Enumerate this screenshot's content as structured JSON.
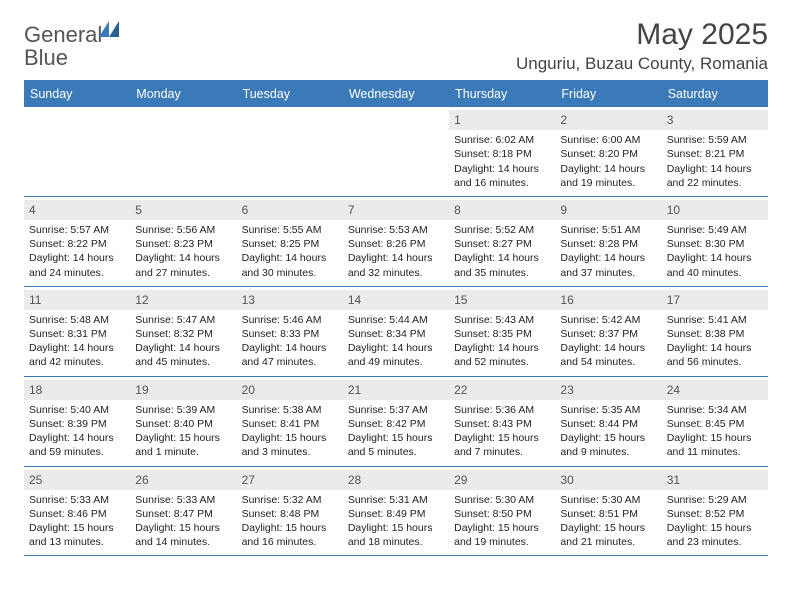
{
  "brand": {
    "word1": "General",
    "word2": "Blue"
  },
  "title": "May 2025",
  "location": "Unguriu, Buzau County, Romania",
  "colors": {
    "accent": "#3a7ab8",
    "text": "#444444",
    "daybg": "#ebebeb"
  },
  "weekdays": [
    "Sunday",
    "Monday",
    "Tuesday",
    "Wednesday",
    "Thursday",
    "Friday",
    "Saturday"
  ],
  "weeks": [
    [
      {
        "n": "",
        "sr": "",
        "ss": "",
        "dl": ""
      },
      {
        "n": "",
        "sr": "",
        "ss": "",
        "dl": ""
      },
      {
        "n": "",
        "sr": "",
        "ss": "",
        "dl": ""
      },
      {
        "n": "",
        "sr": "",
        "ss": "",
        "dl": ""
      },
      {
        "n": "1",
        "sr": "Sunrise: 6:02 AM",
        "ss": "Sunset: 8:18 PM",
        "dl": "Daylight: 14 hours and 16 minutes."
      },
      {
        "n": "2",
        "sr": "Sunrise: 6:00 AM",
        "ss": "Sunset: 8:20 PM",
        "dl": "Daylight: 14 hours and 19 minutes."
      },
      {
        "n": "3",
        "sr": "Sunrise: 5:59 AM",
        "ss": "Sunset: 8:21 PM",
        "dl": "Daylight: 14 hours and 22 minutes."
      }
    ],
    [
      {
        "n": "4",
        "sr": "Sunrise: 5:57 AM",
        "ss": "Sunset: 8:22 PM",
        "dl": "Daylight: 14 hours and 24 minutes."
      },
      {
        "n": "5",
        "sr": "Sunrise: 5:56 AM",
        "ss": "Sunset: 8:23 PM",
        "dl": "Daylight: 14 hours and 27 minutes."
      },
      {
        "n": "6",
        "sr": "Sunrise: 5:55 AM",
        "ss": "Sunset: 8:25 PM",
        "dl": "Daylight: 14 hours and 30 minutes."
      },
      {
        "n": "7",
        "sr": "Sunrise: 5:53 AM",
        "ss": "Sunset: 8:26 PM",
        "dl": "Daylight: 14 hours and 32 minutes."
      },
      {
        "n": "8",
        "sr": "Sunrise: 5:52 AM",
        "ss": "Sunset: 8:27 PM",
        "dl": "Daylight: 14 hours and 35 minutes."
      },
      {
        "n": "9",
        "sr": "Sunrise: 5:51 AM",
        "ss": "Sunset: 8:28 PM",
        "dl": "Daylight: 14 hours and 37 minutes."
      },
      {
        "n": "10",
        "sr": "Sunrise: 5:49 AM",
        "ss": "Sunset: 8:30 PM",
        "dl": "Daylight: 14 hours and 40 minutes."
      }
    ],
    [
      {
        "n": "11",
        "sr": "Sunrise: 5:48 AM",
        "ss": "Sunset: 8:31 PM",
        "dl": "Daylight: 14 hours and 42 minutes."
      },
      {
        "n": "12",
        "sr": "Sunrise: 5:47 AM",
        "ss": "Sunset: 8:32 PM",
        "dl": "Daylight: 14 hours and 45 minutes."
      },
      {
        "n": "13",
        "sr": "Sunrise: 5:46 AM",
        "ss": "Sunset: 8:33 PM",
        "dl": "Daylight: 14 hours and 47 minutes."
      },
      {
        "n": "14",
        "sr": "Sunrise: 5:44 AM",
        "ss": "Sunset: 8:34 PM",
        "dl": "Daylight: 14 hours and 49 minutes."
      },
      {
        "n": "15",
        "sr": "Sunrise: 5:43 AM",
        "ss": "Sunset: 8:35 PM",
        "dl": "Daylight: 14 hours and 52 minutes."
      },
      {
        "n": "16",
        "sr": "Sunrise: 5:42 AM",
        "ss": "Sunset: 8:37 PM",
        "dl": "Daylight: 14 hours and 54 minutes."
      },
      {
        "n": "17",
        "sr": "Sunrise: 5:41 AM",
        "ss": "Sunset: 8:38 PM",
        "dl": "Daylight: 14 hours and 56 minutes."
      }
    ],
    [
      {
        "n": "18",
        "sr": "Sunrise: 5:40 AM",
        "ss": "Sunset: 8:39 PM",
        "dl": "Daylight: 14 hours and 59 minutes."
      },
      {
        "n": "19",
        "sr": "Sunrise: 5:39 AM",
        "ss": "Sunset: 8:40 PM",
        "dl": "Daylight: 15 hours and 1 minute."
      },
      {
        "n": "20",
        "sr": "Sunrise: 5:38 AM",
        "ss": "Sunset: 8:41 PM",
        "dl": "Daylight: 15 hours and 3 minutes."
      },
      {
        "n": "21",
        "sr": "Sunrise: 5:37 AM",
        "ss": "Sunset: 8:42 PM",
        "dl": "Daylight: 15 hours and 5 minutes."
      },
      {
        "n": "22",
        "sr": "Sunrise: 5:36 AM",
        "ss": "Sunset: 8:43 PM",
        "dl": "Daylight: 15 hours and 7 minutes."
      },
      {
        "n": "23",
        "sr": "Sunrise: 5:35 AM",
        "ss": "Sunset: 8:44 PM",
        "dl": "Daylight: 15 hours and 9 minutes."
      },
      {
        "n": "24",
        "sr": "Sunrise: 5:34 AM",
        "ss": "Sunset: 8:45 PM",
        "dl": "Daylight: 15 hours and 11 minutes."
      }
    ],
    [
      {
        "n": "25",
        "sr": "Sunrise: 5:33 AM",
        "ss": "Sunset: 8:46 PM",
        "dl": "Daylight: 15 hours and 13 minutes."
      },
      {
        "n": "26",
        "sr": "Sunrise: 5:33 AM",
        "ss": "Sunset: 8:47 PM",
        "dl": "Daylight: 15 hours and 14 minutes."
      },
      {
        "n": "27",
        "sr": "Sunrise: 5:32 AM",
        "ss": "Sunset: 8:48 PM",
        "dl": "Daylight: 15 hours and 16 minutes."
      },
      {
        "n": "28",
        "sr": "Sunrise: 5:31 AM",
        "ss": "Sunset: 8:49 PM",
        "dl": "Daylight: 15 hours and 18 minutes."
      },
      {
        "n": "29",
        "sr": "Sunrise: 5:30 AM",
        "ss": "Sunset: 8:50 PM",
        "dl": "Daylight: 15 hours and 19 minutes."
      },
      {
        "n": "30",
        "sr": "Sunrise: 5:30 AM",
        "ss": "Sunset: 8:51 PM",
        "dl": "Daylight: 15 hours and 21 minutes."
      },
      {
        "n": "31",
        "sr": "Sunrise: 5:29 AM",
        "ss": "Sunset: 8:52 PM",
        "dl": "Daylight: 15 hours and 23 minutes."
      }
    ]
  ]
}
